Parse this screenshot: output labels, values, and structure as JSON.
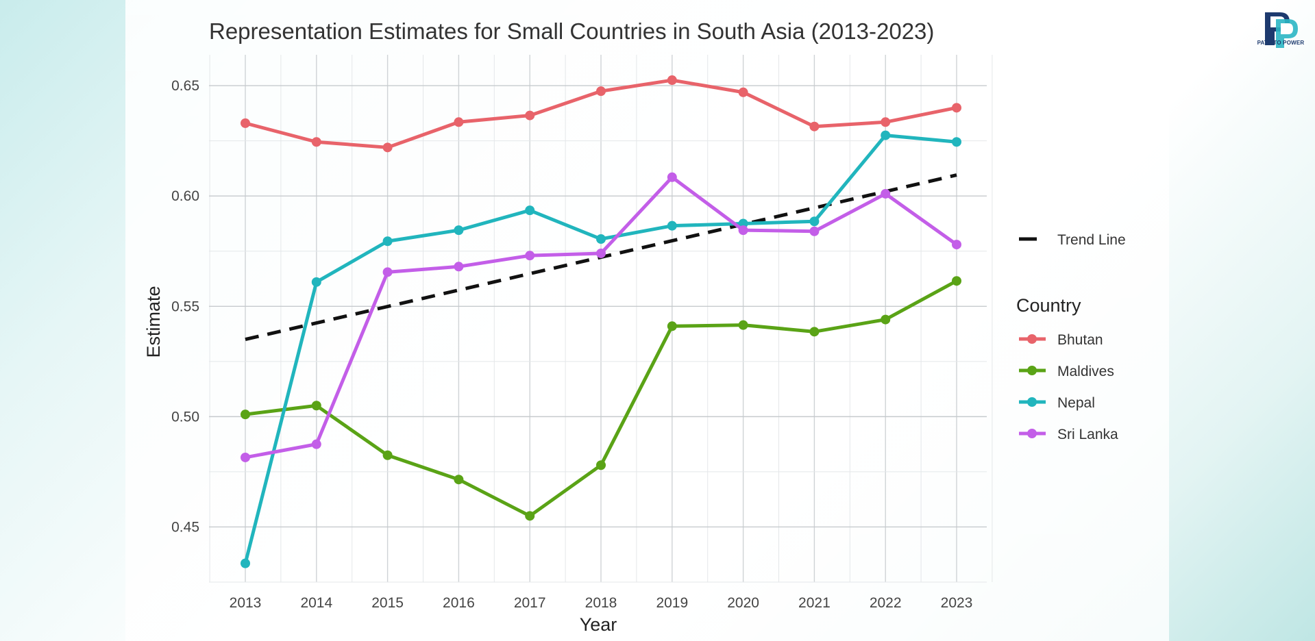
{
  "brand": {
    "name": "PATH TO POWER",
    "primary_color": "#1d3a6e",
    "accent_color": "#2bb6c4"
  },
  "chart_data": {
    "type": "line",
    "title": "Representation Estimates for Small Countries in South Asia (2013-2023)",
    "xlabel": "Year",
    "ylabel": "Estimate",
    "x": [
      2013,
      2014,
      2015,
      2016,
      2017,
      2018,
      2019,
      2020,
      2021,
      2022,
      2023
    ],
    "x_tick_labels": [
      "2013",
      "2014",
      "2015",
      "2016",
      "2017",
      "2018",
      "2019",
      "2020",
      "2021",
      "2022",
      "2023"
    ],
    "ylim": [
      0.425,
      0.664
    ],
    "y_ticks": [
      0.45,
      0.5,
      0.55,
      0.6,
      0.65
    ],
    "y_tick_labels": [
      "0.45",
      "0.50",
      "0.55",
      "0.60",
      "0.65"
    ],
    "grid": true,
    "legend_title": "Country",
    "legend_position": "right",
    "series": [
      {
        "name": "Bhutan",
        "color": "#e8636a",
        "values": [
          0.633,
          0.6245,
          0.622,
          0.6335,
          0.6365,
          0.6475,
          0.6525,
          0.647,
          0.6315,
          0.6335,
          0.64
        ]
      },
      {
        "name": "Maldives",
        "color": "#5aa316",
        "values": [
          0.501,
          0.505,
          0.4825,
          0.4715,
          0.455,
          0.478,
          0.541,
          0.5415,
          0.5385,
          0.544,
          0.5615
        ]
      },
      {
        "name": "Nepal",
        "color": "#21b5bd",
        "values": [
          0.4335,
          0.561,
          0.5795,
          0.5845,
          0.5935,
          0.5805,
          0.5865,
          0.5875,
          0.5885,
          0.6275,
          0.6245
        ]
      },
      {
        "name": "Sri Lanka",
        "color": "#c35ee8",
        "values": [
          0.4815,
          0.4875,
          0.5655,
          0.568,
          0.573,
          0.574,
          0.6085,
          0.5845,
          0.584,
          0.601,
          0.578
        ]
      }
    ],
    "trend_line": {
      "name": "Trend Line",
      "color": "#111111",
      "style": "dashed",
      "start": [
        2013,
        0.535
      ],
      "end": [
        2023,
        0.6095
      ]
    }
  }
}
